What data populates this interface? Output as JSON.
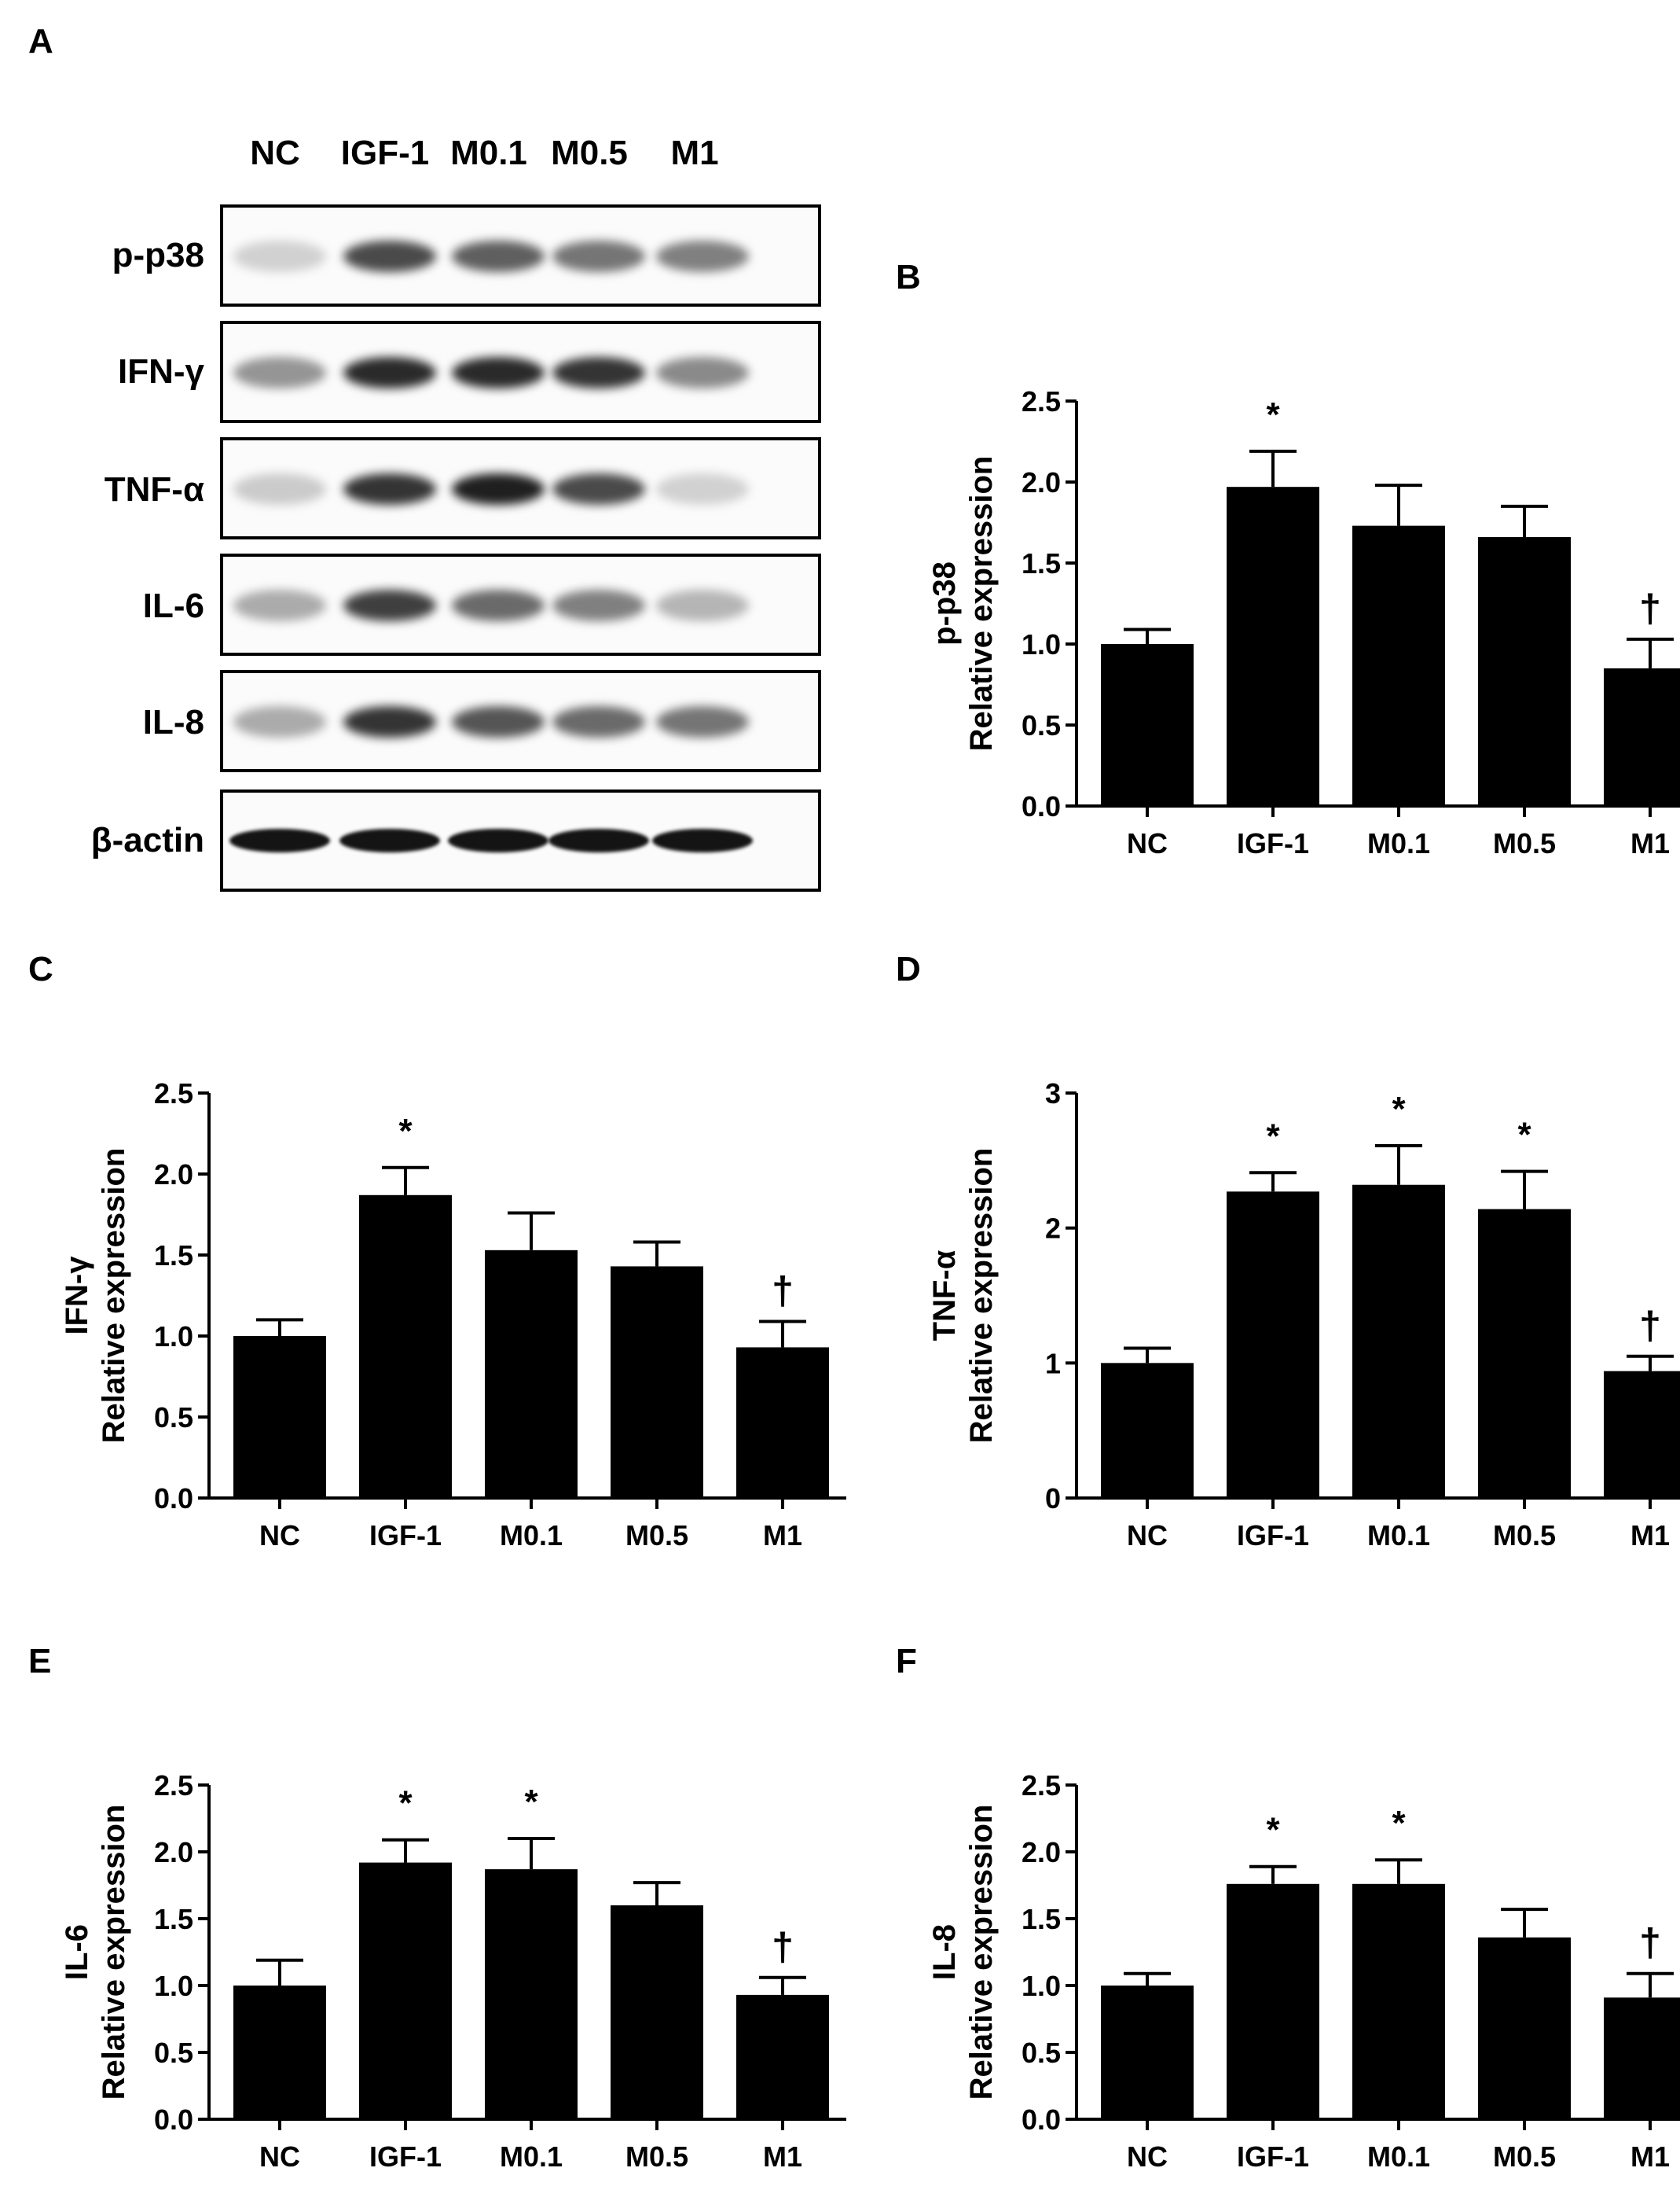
{
  "panel_letters": {
    "A": "A",
    "B": "B",
    "C": "C",
    "D": "D",
    "E": "E",
    "F": "F"
  },
  "blot": {
    "lanes": [
      "NC",
      "IGF-1",
      "M0.1",
      "M0.5",
      "M1"
    ],
    "rows": [
      {
        "label": "p-p38",
        "intensity": [
          0.12,
          0.75,
          0.65,
          0.55,
          0.5
        ]
      },
      {
        "label": "IFN-γ",
        "intensity": [
          0.4,
          0.9,
          0.9,
          0.85,
          0.45
        ]
      },
      {
        "label": "TNF-α",
        "intensity": [
          0.15,
          0.85,
          0.95,
          0.75,
          0.12
        ]
      },
      {
        "label": "IL-6",
        "intensity": [
          0.3,
          0.8,
          0.6,
          0.5,
          0.25
        ]
      },
      {
        "label": "IL-8",
        "intensity": [
          0.3,
          0.85,
          0.7,
          0.6,
          0.55
        ]
      },
      {
        "label": "β-actin",
        "intensity": [
          1.0,
          1.0,
          1.0,
          1.0,
          1.0
        ]
      }
    ]
  },
  "chart_data": [
    {
      "panel": "B",
      "type": "bar",
      "categories": [
        "NC",
        "IGF-1",
        "M0.1",
        "M0.5",
        "M1"
      ],
      "values": [
        1.0,
        1.97,
        1.73,
        1.66,
        0.85
      ],
      "errors": [
        0.09,
        0.22,
        0.25,
        0.19,
        0.18
      ],
      "markers": [
        "",
        "*",
        "",
        "",
        "†"
      ],
      "ylabel_top": "p-p38",
      "ylabel": "Relative expression",
      "ylim": [
        0,
        2.5
      ],
      "yticks": [
        "0.0",
        "0.5",
        "1.0",
        "1.5",
        "2.0",
        "2.5"
      ],
      "yticks_values": [
        0,
        0.5,
        1.0,
        1.5,
        2.0,
        2.5
      ]
    },
    {
      "panel": "C",
      "type": "bar",
      "categories": [
        "NC",
        "IGF-1",
        "M0.1",
        "M0.5",
        "M1"
      ],
      "values": [
        1.0,
        1.87,
        1.53,
        1.43,
        0.93
      ],
      "errors": [
        0.1,
        0.17,
        0.23,
        0.15,
        0.16
      ],
      "markers": [
        "",
        "*",
        "",
        "",
        "†"
      ],
      "ylabel_top": "IFN-γ",
      "ylabel": "Relative expression",
      "ylim": [
        0,
        2.5
      ],
      "yticks": [
        "0.0",
        "0.5",
        "1.0",
        "1.5",
        "2.0",
        "2.5"
      ],
      "yticks_values": [
        0,
        0.5,
        1.0,
        1.5,
        2.0,
        2.5
      ]
    },
    {
      "panel": "D",
      "type": "bar",
      "categories": [
        "NC",
        "IGF-1",
        "M0.1",
        "M0.5",
        "M1"
      ],
      "values": [
        1.0,
        2.27,
        2.32,
        2.14,
        0.94
      ],
      "errors": [
        0.11,
        0.14,
        0.29,
        0.28,
        0.11
      ],
      "markers": [
        "",
        "*",
        "*",
        "*",
        "†"
      ],
      "ylabel_top": "TNF-α",
      "ylabel": "Relative expression",
      "ylim": [
        0,
        3
      ],
      "yticks": [
        "0",
        "1",
        "2",
        "3"
      ],
      "yticks_values": [
        0,
        1,
        2,
        3
      ]
    },
    {
      "panel": "E",
      "type": "bar",
      "categories": [
        "NC",
        "IGF-1",
        "M0.1",
        "M0.5",
        "M1"
      ],
      "values": [
        1.0,
        1.92,
        1.87,
        1.6,
        0.93
      ],
      "errors": [
        0.19,
        0.17,
        0.23,
        0.17,
        0.13
      ],
      "markers": [
        "",
        "*",
        "*",
        "",
        "†"
      ],
      "ylabel_top": "IL-6",
      "ylabel": "Relative expression",
      "ylim": [
        0,
        2.5
      ],
      "yticks": [
        "0.0",
        "0.5",
        "1.0",
        "1.5",
        "2.0",
        "2.5"
      ],
      "yticks_values": [
        0,
        0.5,
        1.0,
        1.5,
        2.0,
        2.5
      ]
    },
    {
      "panel": "F",
      "type": "bar",
      "categories": [
        "NC",
        "IGF-1",
        "M0.1",
        "M0.5",
        "M1"
      ],
      "values": [
        1.0,
        1.76,
        1.76,
        1.36,
        0.91
      ],
      "errors": [
        0.09,
        0.13,
        0.18,
        0.21,
        0.18
      ],
      "markers": [
        "",
        "*",
        "*",
        "",
        "†"
      ],
      "ylabel_top": "IL-8",
      "ylabel": "Relative expression",
      "ylim": [
        0,
        2.5
      ],
      "yticks": [
        "0.0",
        "0.5",
        "1.0",
        "1.5",
        "2.0",
        "2.5"
      ],
      "yticks_values": [
        0,
        0.5,
        1.0,
        1.5,
        2.0,
        2.5
      ]
    }
  ]
}
